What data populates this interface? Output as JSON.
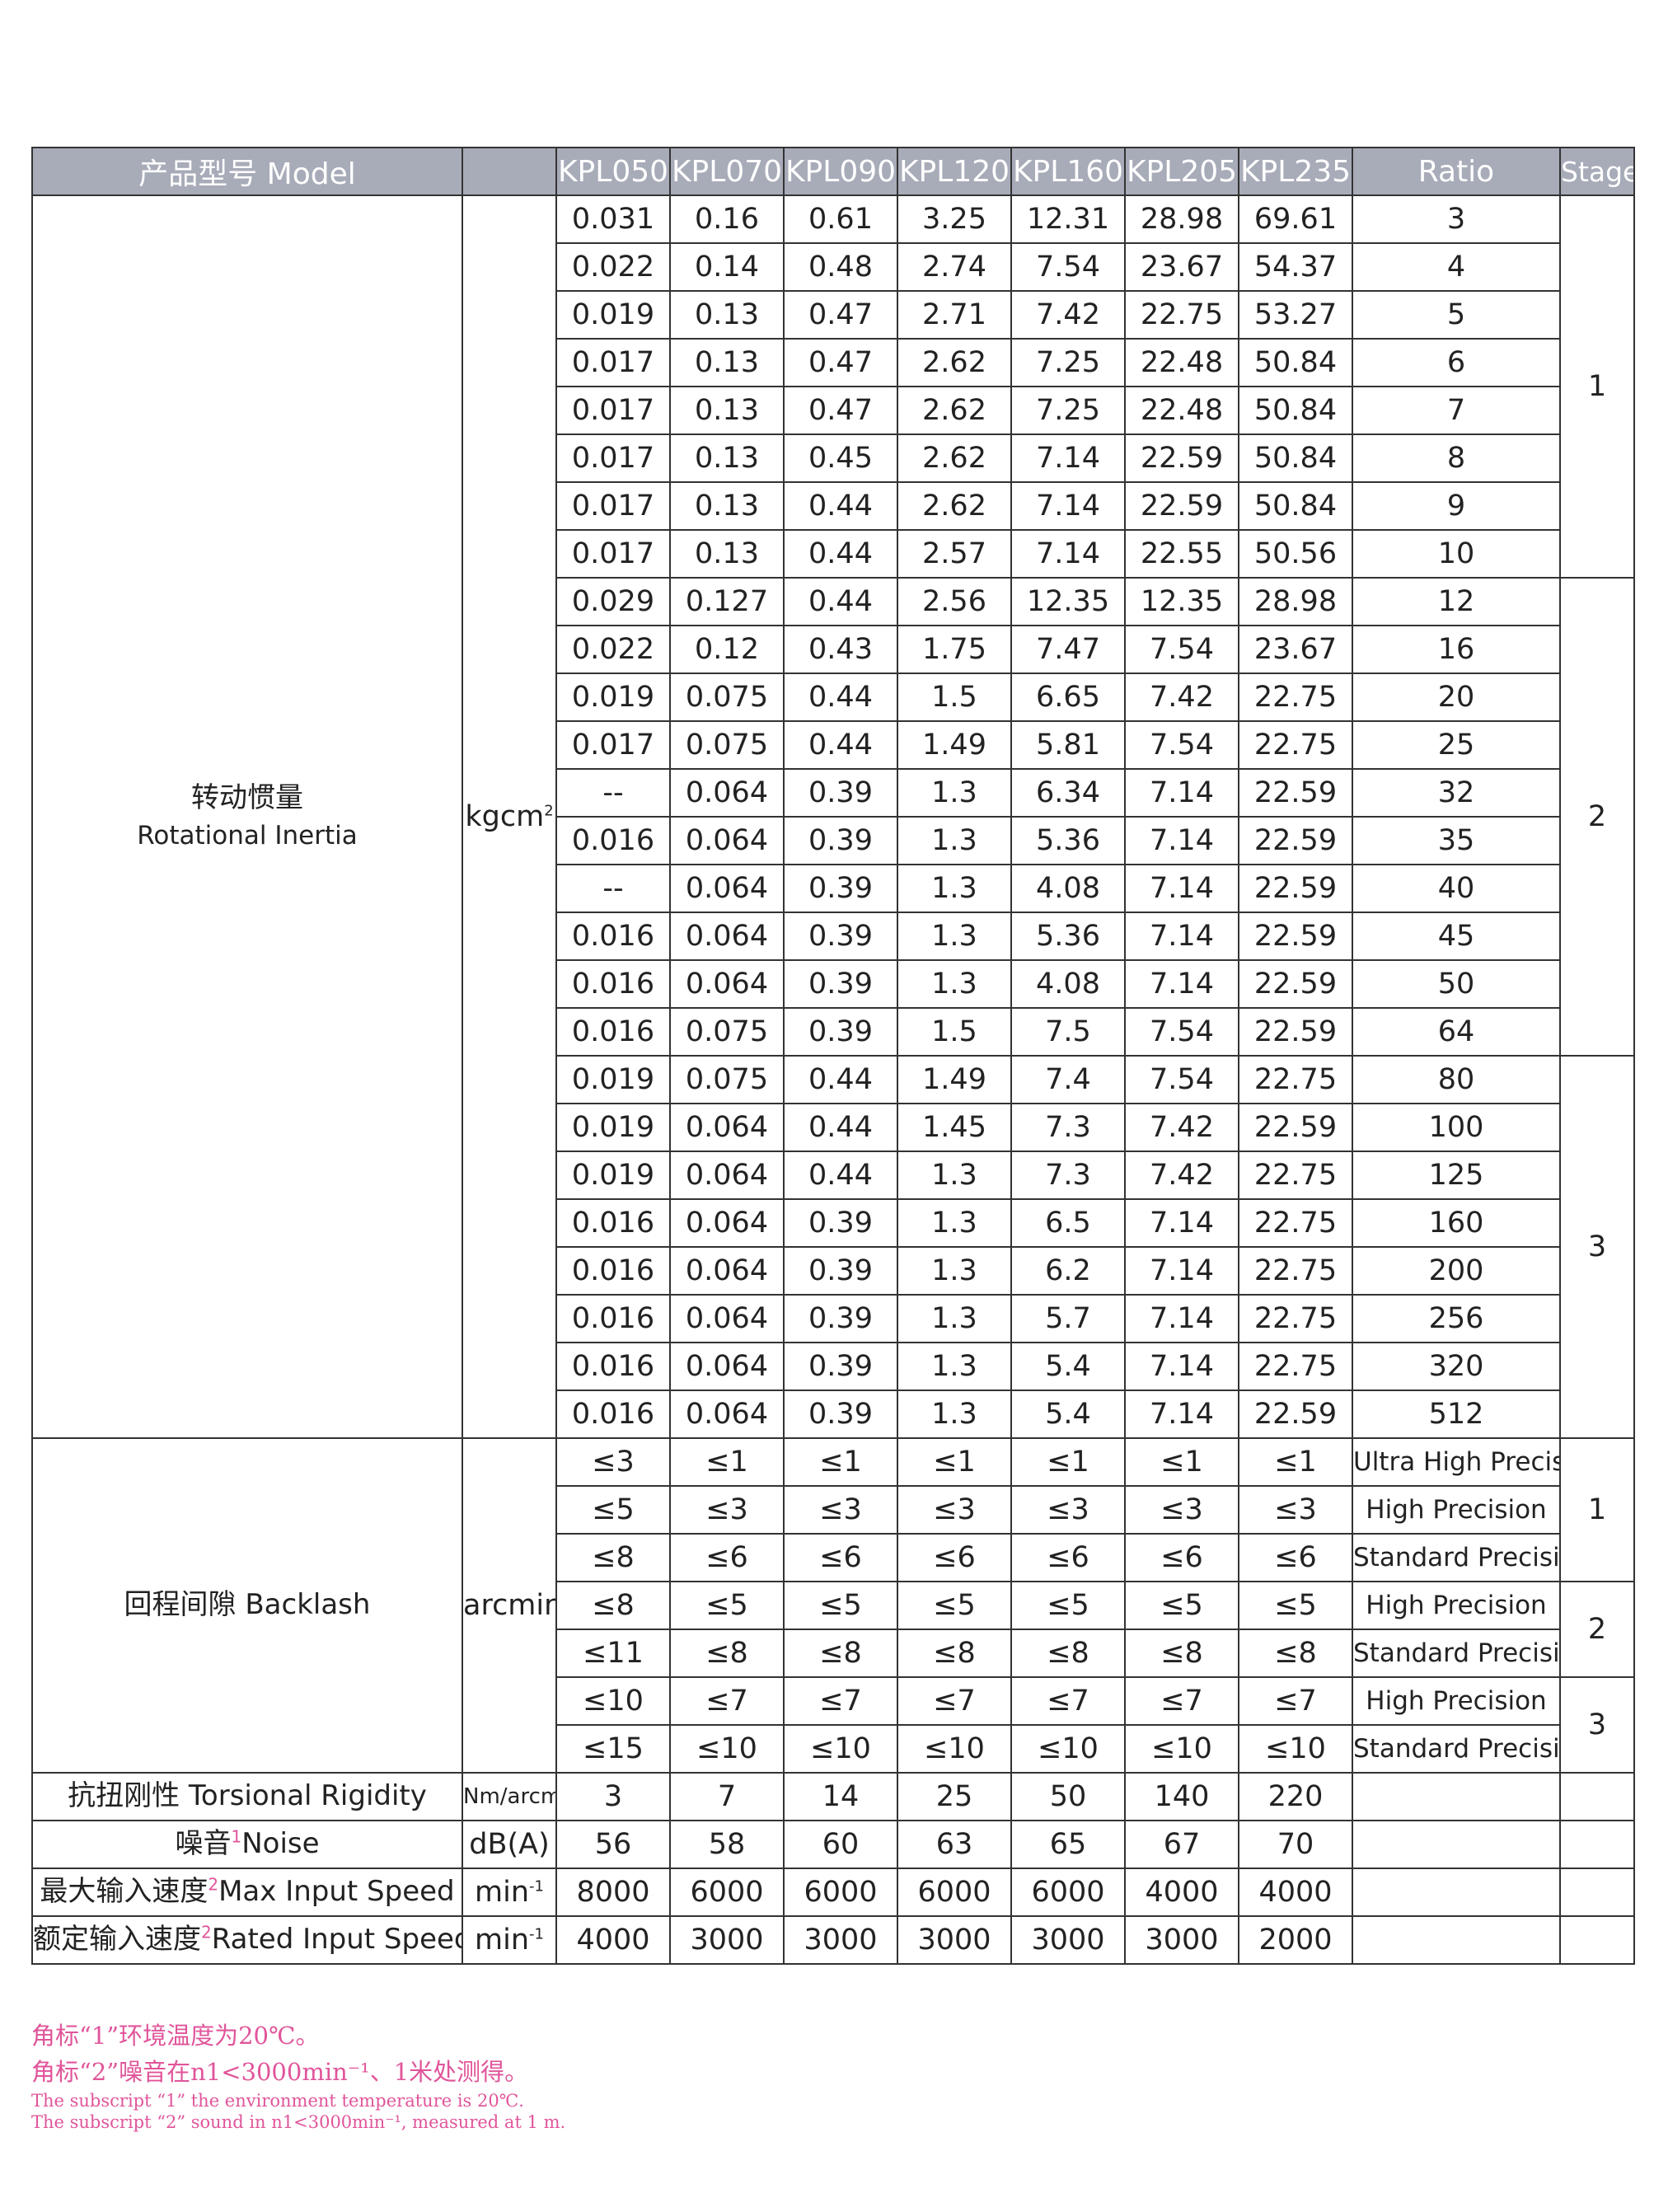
{
  "table": {
    "headers": {
      "model": "产品型号 Model",
      "models": [
        "KPL050",
        "KPL070",
        "KPL090",
        "KPL120",
        "KPL160",
        "KPL205",
        "KPL235"
      ],
      "ratio": "Ratio",
      "stage": "Stage"
    },
    "inertia": {
      "label_cn": "转动惯量",
      "label_en": "Rotational Inertia",
      "unit": "kgcm",
      "unit_sup": "2",
      "stages": [
        {
          "stage": "1",
          "rows": [
            {
              "values": [
                "0.031",
                "0.16",
                "0.61",
                "3.25",
                "12.31",
                "28.98",
                "69.61"
              ],
              "ratio": "3"
            },
            {
              "values": [
                "0.022",
                "0.14",
                "0.48",
                "2.74",
                "7.54",
                "23.67",
                "54.37"
              ],
              "ratio": "4"
            },
            {
              "values": [
                "0.019",
                "0.13",
                "0.47",
                "2.71",
                "7.42",
                "22.75",
                "53.27"
              ],
              "ratio": "5"
            },
            {
              "values": [
                "0.017",
                "0.13",
                "0.47",
                "2.62",
                "7.25",
                "22.48",
                "50.84"
              ],
              "ratio": "6"
            },
            {
              "values": [
                "0.017",
                "0.13",
                "0.47",
                "2.62",
                "7.25",
                "22.48",
                "50.84"
              ],
              "ratio": "7"
            },
            {
              "values": [
                "0.017",
                "0.13",
                "0.45",
                "2.62",
                "7.14",
                "22.59",
                "50.84"
              ],
              "ratio": "8"
            },
            {
              "values": [
                "0.017",
                "0.13",
                "0.44",
                "2.62",
                "7.14",
                "22.59",
                "50.84"
              ],
              "ratio": "9"
            },
            {
              "values": [
                "0.017",
                "0.13",
                "0.44",
                "2.57",
                "7.14",
                "22.55",
                "50.56"
              ],
              "ratio": "10"
            }
          ]
        },
        {
          "stage": "2",
          "rows": [
            {
              "values": [
                "0.029",
                "0.127",
                "0.44",
                "2.56",
                "12.35",
                "12.35",
                "28.98"
              ],
              "ratio": "12"
            },
            {
              "values": [
                "0.022",
                "0.12",
                "0.43",
                "1.75",
                "7.47",
                "7.54",
                "23.67"
              ],
              "ratio": "16"
            },
            {
              "values": [
                "0.019",
                "0.075",
                "0.44",
                "1.5",
                "6.65",
                "7.42",
                "22.75"
              ],
              "ratio": "20"
            },
            {
              "values": [
                "0.017",
                "0.075",
                "0.44",
                "1.49",
                "5.81",
                "7.54",
                "22.75"
              ],
              "ratio": "25"
            },
            {
              "values": [
                "--",
                "0.064",
                "0.39",
                "1.3",
                "6.34",
                "7.14",
                "22.59"
              ],
              "ratio": "32"
            },
            {
              "values": [
                "0.016",
                "0.064",
                "0.39",
                "1.3",
                "5.36",
                "7.14",
                "22.59"
              ],
              "ratio": "35"
            },
            {
              "values": [
                "--",
                "0.064",
                "0.39",
                "1.3",
                "4.08",
                "7.14",
                "22.59"
              ],
              "ratio": "40"
            },
            {
              "values": [
                "0.016",
                "0.064",
                "0.39",
                "1.3",
                "5.36",
                "7.14",
                "22.59"
              ],
              "ratio": "45"
            },
            {
              "values": [
                "0.016",
                "0.064",
                "0.39",
                "1.3",
                "4.08",
                "7.14",
                "22.59"
              ],
              "ratio": "50"
            },
            {
              "values": [
                "0.016",
                "0.075",
                "0.39",
                "1.5",
                "7.5",
                "7.54",
                "22.59"
              ],
              "ratio": "64"
            }
          ]
        },
        {
          "stage": "3",
          "rows": [
            {
              "values": [
                "0.019",
                "0.075",
                "0.44",
                "1.49",
                "7.4",
                "7.54",
                "22.75"
              ],
              "ratio": "80"
            },
            {
              "values": [
                "0.019",
                "0.064",
                "0.44",
                "1.45",
                "7.3",
                "7.42",
                "22.59"
              ],
              "ratio": "100"
            },
            {
              "values": [
                "0.019",
                "0.064",
                "0.44",
                "1.3",
                "7.3",
                "7.42",
                "22.75"
              ],
              "ratio": "125"
            },
            {
              "values": [
                "0.016",
                "0.064",
                "0.39",
                "1.3",
                "6.5",
                "7.14",
                "22.75"
              ],
              "ratio": "160"
            },
            {
              "values": [
                "0.016",
                "0.064",
                "0.39",
                "1.3",
                "6.2",
                "7.14",
                "22.75"
              ],
              "ratio": "200"
            },
            {
              "values": [
                "0.016",
                "0.064",
                "0.39",
                "1.3",
                "5.7",
                "7.14",
                "22.75"
              ],
              "ratio": "256"
            },
            {
              "values": [
                "0.016",
                "0.064",
                "0.39",
                "1.3",
                "5.4",
                "7.14",
                "22.75"
              ],
              "ratio": "320"
            },
            {
              "values": [
                "0.016",
                "0.064",
                "0.39",
                "1.3",
                "5.4",
                "7.14",
                "22.59"
              ],
              "ratio": "512"
            }
          ]
        }
      ]
    },
    "backlash": {
      "label": "回程间隙 Backlash",
      "unit": "arcmin",
      "stages": [
        {
          "stage": "1",
          "rows": [
            {
              "values": [
                "≤3",
                "≤1",
                "≤1",
                "≤1",
                "≤1",
                "≤1",
                "≤1"
              ],
              "ratio": "Ultra High Precision"
            },
            {
              "values": [
                "≤5",
                "≤3",
                "≤3",
                "≤3",
                "≤3",
                "≤3",
                "≤3"
              ],
              "ratio": "High Precision"
            },
            {
              "values": [
                "≤8",
                "≤6",
                "≤6",
                "≤6",
                "≤6",
                "≤6",
                "≤6"
              ],
              "ratio": "Standard Precision"
            }
          ]
        },
        {
          "stage": "2",
          "rows": [
            {
              "values": [
                "≤8",
                "≤5",
                "≤5",
                "≤5",
                "≤5",
                "≤5",
                "≤5"
              ],
              "ratio": "High Precision"
            },
            {
              "values": [
                "≤11",
                "≤8",
                "≤8",
                "≤8",
                "≤8",
                "≤8",
                "≤8"
              ],
              "ratio": "Standard Precision"
            }
          ]
        },
        {
          "stage": "3",
          "rows": [
            {
              "values": [
                "≤10",
                "≤7",
                "≤7",
                "≤7",
                "≤7",
                "≤7",
                "≤7"
              ],
              "ratio": "High Precision"
            },
            {
              "values": [
                "≤15",
                "≤10",
                "≤10",
                "≤10",
                "≤10",
                "≤10",
                "≤10"
              ],
              "ratio": "Standard Precision"
            }
          ]
        }
      ]
    },
    "single_rows": [
      {
        "label": "抗扭刚性 Torsional Rigidity",
        "unit": "Nm/arcmin",
        "values": [
          "3",
          "7",
          "14",
          "25",
          "50",
          "140",
          "220"
        ]
      },
      {
        "label_cn": "噪音",
        "note": "1",
        "label_en": "Noise",
        "unit": "dB(A)",
        "values": [
          "56",
          "58",
          "60",
          "63",
          "65",
          "67",
          "70"
        ]
      },
      {
        "label_cn": "最大输入速度",
        "note": "2",
        "label_en": "Max Input Speed",
        "unit": "min",
        "unit_sup": "-1",
        "values": [
          "8000",
          "6000",
          "6000",
          "6000",
          "6000",
          "4000",
          "4000"
        ]
      },
      {
        "label_cn": "额定输入速度",
        "note": "2",
        "label_en": "Rated Input Speed",
        "unit": "min",
        "unit_sup": "-1",
        "values": [
          "4000",
          "3000",
          "3000",
          "3000",
          "3000",
          "3000",
          "2000"
        ]
      }
    ]
  },
  "footnotes": {
    "cn": [
      "角标“1”环境温度为20℃。",
      "角标“2”噪音在n1<3000min⁻¹、1米处测得。"
    ],
    "en": [
      "The subscript “1” the environment temperature is 20℃.",
      "The subscript “2” sound in n1<3000min⁻¹, measured at 1 m."
    ]
  }
}
